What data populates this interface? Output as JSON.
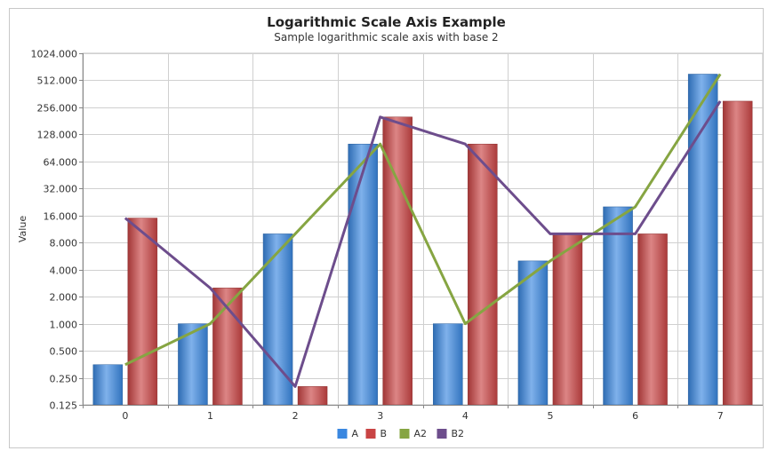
{
  "chart_data": {
    "type": "bar",
    "title": "Logarithmic Scale Axis Example",
    "subtitle": "Sample logarithmic scale axis with base 2",
    "xlabel": "",
    "ylabel": "Value",
    "log_base": 2,
    "ylim": [
      0.125,
      1024
    ],
    "y_ticks": [
      "1024.000",
      "512.000",
      "256.000",
      "128.000",
      "64.000",
      "32.000",
      "16.000",
      "8.000",
      "4.000",
      "2.000",
      "1.000",
      "0.500",
      "0.250",
      "0.125"
    ],
    "y_tick_values": [
      1024,
      512,
      256,
      128,
      64,
      32,
      16,
      8,
      4,
      2,
      1,
      0.5,
      0.25,
      0.125
    ],
    "categories": [
      "0",
      "1",
      "2",
      "3",
      "4",
      "5",
      "6",
      "7"
    ],
    "grid": true,
    "legend_position": "bottom",
    "series": [
      {
        "name": "A",
        "kind": "bar",
        "color": "#3a87e0",
        "values": [
          0.35,
          1,
          10,
          100,
          1,
          5,
          20,
          600
        ]
      },
      {
        "name": "B",
        "kind": "bar",
        "color": "#c94444",
        "values": [
          15,
          2.5,
          0.2,
          200,
          100,
          10,
          10,
          300
        ]
      },
      {
        "name": "A2",
        "kind": "line",
        "color": "#86a542",
        "values": [
          0.35,
          1,
          10,
          100,
          1,
          5,
          20,
          600
        ]
      },
      {
        "name": "B2",
        "kind": "line",
        "color": "#6d4d8c",
        "values": [
          15,
          2.5,
          0.2,
          200,
          100,
          10,
          10,
          300
        ]
      }
    ]
  }
}
